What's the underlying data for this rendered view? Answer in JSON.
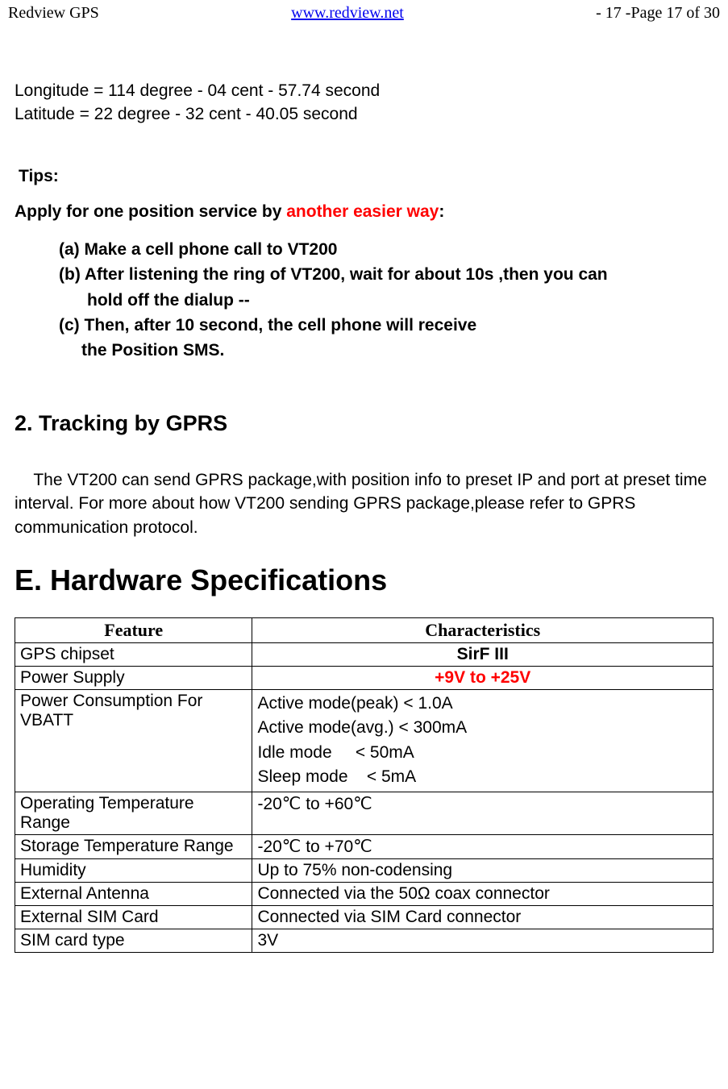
{
  "header": {
    "left": "Redview GPS",
    "center": "www.redview.net",
    "right": "- 17 -Page 17 of 30"
  },
  "coords": {
    "longitude": "Longitude = 114 degree - 04 cent - 57.74 second",
    "latitude": "Latitude = 22 degree - 32 cent - 40.05 second"
  },
  "tips_label": "Tips:",
  "apply_prefix": "Apply for one position service by ",
  "apply_red": "another easier way",
  "apply_suffix": ":",
  "steps": {
    "a": "(a) Make a cell phone call to VT200",
    "b1": "(b) After listening the ring of VT200, wait for about 10s ,then you can",
    "b2": "hold off the dialup --",
    "c1": "(c) Then, after 10 second, the cell phone will receive",
    "c2": "the Position SMS."
  },
  "section2_heading": "2. Tracking by GPRS",
  "section2_body": "    The VT200 can send GPRS package,with position info to preset IP and port at preset time interval. For more about how VT200 sending GPRS package,please refer to GPRS communication protocol.",
  "hw_heading": "E. Hardware Specifications",
  "table": {
    "header_feature": "Feature",
    "header_char": "Characteristics",
    "rows": [
      {
        "feature": "GPS chipset",
        "char": "SirF III",
        "char_bold": true,
        "char_center": true
      },
      {
        "feature": "Power Supply",
        "char": "+9V to +25V",
        "char_bold": true,
        "char_red": true,
        "char_center": true
      },
      {
        "feature": "Power Consumption For VBATT",
        "char": "Active mode(peak) < 1.0A\nActive mode(avg.) < 300mA\nIdle mode     < 50mA\nSleep mode    < 5mA",
        "multi": true
      },
      {
        "feature": "Operating Temperature Range",
        "char": "-20℃  to +60℃"
      },
      {
        "feature": "Storage Temperature Range",
        "char": "-20℃  to +70℃"
      },
      {
        "feature": "Humidity",
        "char": "Up to 75% non-codensing"
      },
      {
        "feature": "External Antenna",
        "char": "Connected via the 50Ω coax connector"
      },
      {
        "feature": "External SIM Card",
        "char": "Connected via SIM Card connector"
      },
      {
        "feature": "SIM card type",
        "char": "3V"
      }
    ]
  }
}
